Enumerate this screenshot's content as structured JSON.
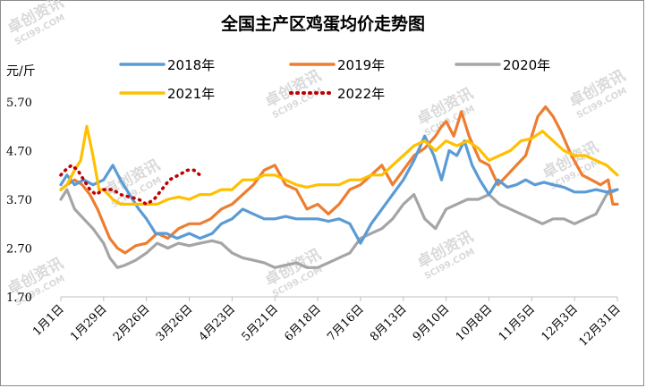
{
  "chart_data": {
    "type": "line",
    "title": "全国主产区鸡蛋均价走势图",
    "ylabel": "元/斤",
    "ylim": [
      1.7,
      5.7
    ],
    "ytick_labels": [
      "5.70",
      "4.70",
      "3.70",
      "2.70",
      "1.70"
    ],
    "yticks": [
      5.7,
      4.7,
      3.7,
      2.7,
      1.7
    ],
    "xlim": [
      1,
      365
    ],
    "x_ticks": [
      1,
      29,
      57,
      85,
      113,
      141,
      169,
      197,
      225,
      253,
      281,
      309,
      337,
      365
    ],
    "x_tick_labels": [
      "1月1日",
      "1月29日",
      "2月26日",
      "3月26日",
      "4月23日",
      "5月21日",
      "6月18日",
      "7月16日",
      "8月13日",
      "9月10日",
      "10月8日",
      "11月5日",
      "12月3日",
      "12月31日"
    ],
    "watermark": [
      "卓创资讯",
      "SCI99.COM"
    ],
    "grid": false,
    "legend_position": "top",
    "series": [
      {
        "name": "2018年",
        "color": "#5B9BD5",
        "style": "solid",
        "x": [
          1,
          5,
          10,
          16,
          22,
          29,
          35,
          40,
          46,
          52,
          57,
          63,
          70,
          77,
          85,
          92,
          100,
          106,
          113,
          120,
          127,
          134,
          141,
          148,
          155,
          162,
          169,
          176,
          183,
          190,
          197,
          204,
          211,
          218,
          225,
          232,
          239,
          245,
          250,
          255,
          260,
          265,
          270,
          275,
          281,
          287,
          293,
          299,
          305,
          311,
          317,
          323,
          330,
          337,
          344,
          351,
          358,
          365
        ],
        "y": [
          4.0,
          4.2,
          4.0,
          4.1,
          4.0,
          4.1,
          4.4,
          4.1,
          3.8,
          3.5,
          3.3,
          3.0,
          3.0,
          2.9,
          3.0,
          2.9,
          3.0,
          3.2,
          3.3,
          3.5,
          3.4,
          3.3,
          3.3,
          3.35,
          3.3,
          3.3,
          3.3,
          3.25,
          3.3,
          3.2,
          2.8,
          3.2,
          3.5,
          3.8,
          4.1,
          4.5,
          5.0,
          4.6,
          4.1,
          4.7,
          4.6,
          4.9,
          4.4,
          4.1,
          3.8,
          4.1,
          3.95,
          4.0,
          4.1,
          4.0,
          4.05,
          4.0,
          3.95,
          3.85,
          3.85,
          3.9,
          3.85,
          3.9
        ]
      },
      {
        "name": "2019年",
        "color": "#ED7D31",
        "style": "solid",
        "x": [
          1,
          5,
          10,
          15,
          20,
          25,
          29,
          33,
          38,
          43,
          50,
          57,
          64,
          71,
          78,
          85,
          92,
          99,
          106,
          113,
          120,
          127,
          134,
          141,
          148,
          155,
          162,
          169,
          176,
          183,
          190,
          197,
          204,
          211,
          218,
          225,
          232,
          239,
          246,
          250,
          253,
          258,
          263,
          268,
          275,
          281,
          287,
          293,
          299,
          305,
          309,
          313,
          318,
          323,
          328,
          335,
          342,
          348,
          354,
          359,
          362,
          365
        ],
        "y": [
          3.9,
          4.0,
          4.1,
          4.0,
          3.8,
          3.5,
          3.2,
          2.9,
          2.7,
          2.6,
          2.75,
          2.8,
          3.0,
          2.9,
          3.1,
          3.2,
          3.2,
          3.3,
          3.5,
          3.6,
          3.8,
          4.0,
          4.3,
          4.4,
          4.0,
          3.9,
          3.5,
          3.6,
          3.4,
          3.6,
          3.9,
          4.0,
          4.2,
          4.4,
          4.0,
          4.3,
          4.6,
          4.75,
          5.0,
          5.2,
          5.3,
          5.0,
          5.5,
          5.0,
          4.5,
          4.4,
          4.0,
          4.2,
          4.4,
          4.6,
          5.0,
          5.4,
          5.6,
          5.4,
          5.1,
          4.6,
          4.2,
          4.1,
          4.0,
          4.1,
          3.6,
          3.6
        ]
      },
      {
        "name": "2020年",
        "color": "#A5A5A5",
        "style": "solid",
        "x": [
          1,
          5,
          10,
          16,
          22,
          29,
          33,
          38,
          43,
          50,
          57,
          64,
          71,
          78,
          85,
          92,
          100,
          106,
          113,
          120,
          127,
          134,
          141,
          148,
          155,
          162,
          169,
          176,
          183,
          190,
          197,
          204,
          211,
          218,
          225,
          232,
          239,
          246,
          253,
          260,
          267,
          274,
          281,
          288,
          295,
          302,
          309,
          316,
          323,
          330,
          337,
          344,
          351,
          358,
          365
        ],
        "y": [
          3.7,
          3.9,
          3.5,
          3.3,
          3.1,
          2.8,
          2.5,
          2.3,
          2.35,
          2.45,
          2.6,
          2.8,
          2.7,
          2.8,
          2.75,
          2.8,
          2.85,
          2.8,
          2.6,
          2.5,
          2.45,
          2.4,
          2.3,
          2.35,
          2.4,
          2.3,
          2.3,
          2.4,
          2.5,
          2.6,
          2.9,
          3.0,
          3.1,
          3.3,
          3.6,
          3.8,
          3.3,
          3.1,
          3.5,
          3.6,
          3.7,
          3.7,
          3.8,
          3.6,
          3.5,
          3.4,
          3.3,
          3.2,
          3.3,
          3.3,
          3.2,
          3.3,
          3.4,
          3.8,
          3.9
        ]
      },
      {
        "name": "2021年",
        "color": "#FFC000",
        "style": "solid",
        "x": [
          1,
          5,
          10,
          14,
          18,
          22,
          26,
          29,
          35,
          40,
          46,
          52,
          57,
          64,
          71,
          78,
          85,
          92,
          99,
          106,
          113,
          120,
          127,
          134,
          141,
          148,
          155,
          162,
          169,
          176,
          183,
          190,
          197,
          204,
          211,
          218,
          225,
          232,
          239,
          246,
          253,
          260,
          267,
          274,
          281,
          288,
          295,
          302,
          309,
          316,
          323,
          330,
          337,
          344,
          351,
          358,
          365
        ],
        "y": [
          3.9,
          4.0,
          4.3,
          4.5,
          5.2,
          4.6,
          3.9,
          3.9,
          3.7,
          3.6,
          3.6,
          3.6,
          3.6,
          3.6,
          3.7,
          3.75,
          3.7,
          3.8,
          3.8,
          3.9,
          3.9,
          4.1,
          4.1,
          4.2,
          4.2,
          4.1,
          4.0,
          3.95,
          4.0,
          4.0,
          4.0,
          4.1,
          4.1,
          4.2,
          4.2,
          4.4,
          4.6,
          4.8,
          4.9,
          4.7,
          4.9,
          4.8,
          4.9,
          4.75,
          4.5,
          4.6,
          4.7,
          4.9,
          4.95,
          5.1,
          4.9,
          4.7,
          4.6,
          4.6,
          4.5,
          4.4,
          4.2
        ]
      },
      {
        "name": "2022年",
        "color": "#C00000",
        "style": "dotted",
        "x": [
          1,
          4,
          8,
          12,
          16,
          20,
          24,
          29,
          35,
          40,
          46,
          52,
          57,
          62,
          67,
          72,
          78,
          84,
          88,
          92
        ],
        "y": [
          4.2,
          4.3,
          4.4,
          4.3,
          4.1,
          3.9,
          3.8,
          3.9,
          3.9,
          3.8,
          3.75,
          3.7,
          3.6,
          3.7,
          3.9,
          4.1,
          4.2,
          4.3,
          4.3,
          4.2
        ]
      }
    ]
  }
}
